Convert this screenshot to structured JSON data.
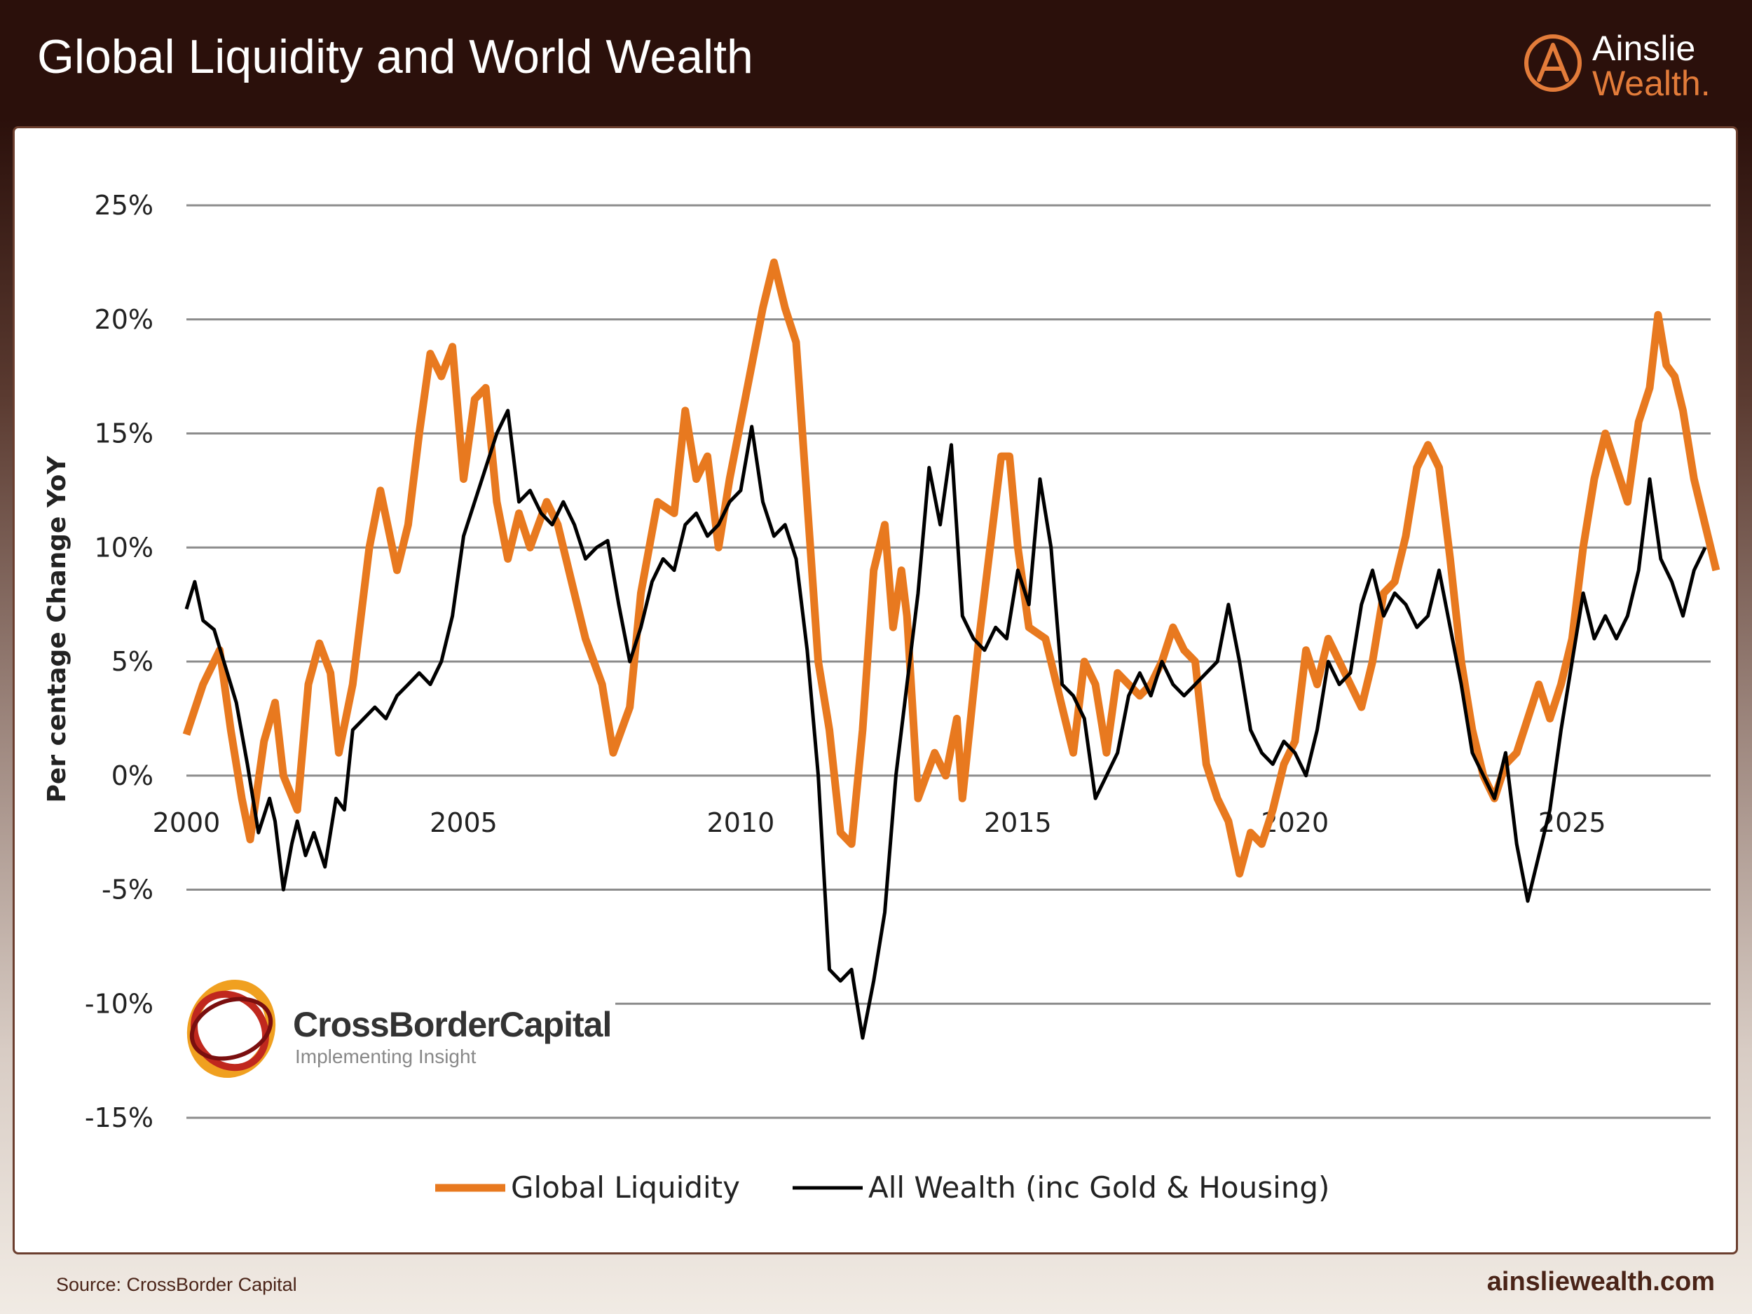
{
  "header": {
    "title": "Global Liquidity and World Wealth"
  },
  "brand": {
    "line1": "Ainslie",
    "line2": "Wealth.",
    "icon": "ainslie-a-logo-icon",
    "accent": "#e37c3a"
  },
  "watermark": {
    "name": "CrossBorderCapital",
    "tagline": "Implementing Insight",
    "icon": "crossborder-rings-logo-icon"
  },
  "footer": {
    "source": "Source: CrossBorder Capital",
    "url": "ainsliewealth.com"
  },
  "chart_data": {
    "type": "line",
    "title": "Global Liquidity and World Wealth",
    "ylabel": "Per centage Change YoY",
    "xlabel": "",
    "ylim": [
      -15,
      25
    ],
    "xlim": [
      2000,
      2027.5
    ],
    "yticks": [
      25,
      20,
      15,
      10,
      5,
      0,
      -5,
      -10,
      -15
    ],
    "ytick_labels": [
      "25%",
      "20%",
      "15%",
      "10%",
      "5%",
      "0%",
      "-5%",
      "-10%",
      "-15%"
    ],
    "xticks": [
      2000,
      2005,
      2010,
      2015,
      2020,
      2025
    ],
    "xtick_labels": [
      "2000",
      "2005",
      "2010",
      "2015",
      "2020",
      "2025"
    ],
    "grid": "horizontal",
    "legend_position": "bottom",
    "series": [
      {
        "name": "Global Liquidity",
        "color": "#e8791f",
        "points": [
          [
            2000.0,
            1.8
          ],
          [
            2000.3,
            4.0
          ],
          [
            2000.6,
            5.5
          ],
          [
            2000.8,
            2.0
          ],
          [
            2001.0,
            -1.0
          ],
          [
            2001.15,
            -2.8
          ],
          [
            2001.4,
            1.5
          ],
          [
            2001.6,
            3.2
          ],
          [
            2001.75,
            0.0
          ],
          [
            2002.0,
            -1.5
          ],
          [
            2002.2,
            4.0
          ],
          [
            2002.4,
            5.8
          ],
          [
            2002.6,
            4.5
          ],
          [
            2002.75,
            1.0
          ],
          [
            2003.0,
            4.0
          ],
          [
            2003.3,
            10.0
          ],
          [
            2003.5,
            12.5
          ],
          [
            2003.8,
            9.0
          ],
          [
            2004.0,
            11.0
          ],
          [
            2004.2,
            15.0
          ],
          [
            2004.4,
            18.5
          ],
          [
            2004.6,
            17.5
          ],
          [
            2004.8,
            18.8
          ],
          [
            2005.0,
            13.0
          ],
          [
            2005.2,
            16.5
          ],
          [
            2005.4,
            17.0
          ],
          [
            2005.6,
            12.0
          ],
          [
            2005.8,
            9.5
          ],
          [
            2006.0,
            11.5
          ],
          [
            2006.2,
            10.0
          ],
          [
            2006.5,
            12.0
          ],
          [
            2006.7,
            11.0
          ],
          [
            2007.0,
            8.0
          ],
          [
            2007.2,
            6.0
          ],
          [
            2007.5,
            4.0
          ],
          [
            2007.7,
            1.0
          ],
          [
            2008.0,
            3.0
          ],
          [
            2008.2,
            8.0
          ],
          [
            2008.5,
            12.0
          ],
          [
            2008.8,
            11.5
          ],
          [
            2009.0,
            16.0
          ],
          [
            2009.2,
            13.0
          ],
          [
            2009.4,
            14.0
          ],
          [
            2009.6,
            10.0
          ],
          [
            2009.8,
            13.0
          ],
          [
            2010.0,
            15.5
          ],
          [
            2010.2,
            18.0
          ],
          [
            2010.4,
            20.5
          ],
          [
            2010.6,
            22.5
          ],
          [
            2010.8,
            20.5
          ],
          [
            2011.0,
            19.0
          ],
          [
            2011.2,
            12.0
          ],
          [
            2011.4,
            5.0
          ],
          [
            2011.6,
            2.0
          ],
          [
            2011.8,
            -2.5
          ],
          [
            2012.0,
            -3.0
          ],
          [
            2012.2,
            2.0
          ],
          [
            2012.4,
            9.0
          ],
          [
            2012.6,
            11.0
          ],
          [
            2012.75,
            6.5
          ],
          [
            2012.9,
            9.0
          ],
          [
            2013.0,
            7.0
          ],
          [
            2013.2,
            -1.0
          ],
          [
            2013.5,
            1.0
          ],
          [
            2013.7,
            0.0
          ],
          [
            2013.9,
            2.5
          ],
          [
            2014.0,
            -1.0
          ],
          [
            2014.3,
            6.0
          ],
          [
            2014.5,
            10.0
          ],
          [
            2014.7,
            14.0
          ],
          [
            2014.85,
            14.0
          ],
          [
            2015.0,
            10.0
          ],
          [
            2015.2,
            6.5
          ],
          [
            2015.5,
            6.0
          ],
          [
            2015.8,
            3.0
          ],
          [
            2016.0,
            1.0
          ],
          [
            2016.2,
            5.0
          ],
          [
            2016.4,
            4.0
          ],
          [
            2016.6,
            1.0
          ],
          [
            2016.8,
            4.5
          ],
          [
            2017.0,
            4.0
          ],
          [
            2017.2,
            3.5
          ],
          [
            2017.4,
            4.0
          ],
          [
            2017.6,
            5.0
          ],
          [
            2017.8,
            6.5
          ],
          [
            2018.0,
            5.5
          ],
          [
            2018.2,
            5.0
          ],
          [
            2018.4,
            0.5
          ],
          [
            2018.6,
            -1.0
          ],
          [
            2018.8,
            -2.0
          ],
          [
            2019.0,
            -4.3
          ],
          [
            2019.2,
            -2.5
          ],
          [
            2019.4,
            -3.0
          ],
          [
            2019.6,
            -1.5
          ],
          [
            2019.8,
            0.5
          ],
          [
            2020.0,
            1.5
          ],
          [
            2020.2,
            5.5
          ],
          [
            2020.4,
            4.0
          ],
          [
            2020.6,
            6.0
          ],
          [
            2020.8,
            5.0
          ],
          [
            2021.0,
            4.0
          ],
          [
            2021.2,
            3.0
          ],
          [
            2021.4,
            5.0
          ],
          [
            2021.6,
            8.0
          ],
          [
            2021.8,
            8.5
          ],
          [
            2022.0,
            10.5
          ],
          [
            2022.2,
            13.5
          ],
          [
            2022.4,
            14.5
          ],
          [
            2022.6,
            13.5
          ],
          [
            2022.8,
            9.5
          ],
          [
            2023.0,
            5.0
          ],
          [
            2023.2,
            2.0
          ],
          [
            2023.4,
            0.0
          ],
          [
            2023.6,
            -1.0
          ],
          [
            2023.8,
            0.5
          ],
          [
            2024.0,
            1.0
          ],
          [
            2024.2,
            2.5
          ],
          [
            2024.4,
            4.0
          ],
          [
            2024.6,
            2.5
          ],
          [
            2024.8,
            4.0
          ],
          [
            2025.0,
            6.0
          ],
          [
            2025.2,
            10.0
          ],
          [
            2025.4,
            13.0
          ],
          [
            2025.6,
            15.0
          ],
          [
            2025.8,
            13.5
          ],
          [
            2026.0,
            12.0
          ],
          [
            2026.2,
            15.5
          ],
          [
            2026.4,
            17.0
          ],
          [
            2026.55,
            20.2
          ],
          [
            2026.7,
            18.0
          ],
          [
            2026.85,
            17.5
          ],
          [
            2027.0,
            16.0
          ],
          [
            2027.2,
            13.0
          ],
          [
            2027.4,
            11.0
          ],
          [
            2027.6,
            9.0
          ]
        ],
        "forecast_start_index": 999
      },
      {
        "name": "All Wealth (inc Gold & Housing)",
        "color": "#000000",
        "points": [
          [
            2000.0,
            7.3
          ],
          [
            2000.15,
            8.5
          ],
          [
            2000.3,
            6.8
          ],
          [
            2000.5,
            6.4
          ],
          [
            2000.7,
            4.8
          ],
          [
            2000.9,
            3.2
          ],
          [
            2001.1,
            0.5
          ],
          [
            2001.3,
            -2.5
          ],
          [
            2001.5,
            -1.0
          ],
          [
            2001.6,
            -2.0
          ],
          [
            2001.75,
            -5.0
          ],
          [
            2001.9,
            -3.0
          ],
          [
            2002.0,
            -2.0
          ],
          [
            2002.15,
            -3.5
          ],
          [
            2002.3,
            -2.5
          ],
          [
            2002.5,
            -4.0
          ],
          [
            2002.7,
            -1.0
          ],
          [
            2002.85,
            -1.5
          ],
          [
            2003.0,
            2.0
          ],
          [
            2003.2,
            2.5
          ],
          [
            2003.4,
            3.0
          ],
          [
            2003.6,
            2.5
          ],
          [
            2003.8,
            3.5
          ],
          [
            2004.0,
            4.0
          ],
          [
            2004.2,
            4.5
          ],
          [
            2004.4,
            4.0
          ],
          [
            2004.6,
            5.0
          ],
          [
            2004.8,
            7.0
          ],
          [
            2005.0,
            10.5
          ],
          [
            2005.2,
            12.0
          ],
          [
            2005.4,
            13.5
          ],
          [
            2005.6,
            15.0
          ],
          [
            2005.8,
            16.0
          ],
          [
            2006.0,
            12.0
          ],
          [
            2006.2,
            12.5
          ],
          [
            2006.4,
            11.5
          ],
          [
            2006.6,
            11.0
          ],
          [
            2006.8,
            12.0
          ],
          [
            2007.0,
            11.0
          ],
          [
            2007.2,
            9.5
          ],
          [
            2007.4,
            10.0
          ],
          [
            2007.6,
            10.3
          ],
          [
            2007.8,
            7.5
          ],
          [
            2008.0,
            5.0
          ],
          [
            2008.2,
            6.5
          ],
          [
            2008.4,
            8.5
          ],
          [
            2008.6,
            9.5
          ],
          [
            2008.8,
            9.0
          ],
          [
            2009.0,
            11.0
          ],
          [
            2009.2,
            11.5
          ],
          [
            2009.4,
            10.5
          ],
          [
            2009.6,
            11.0
          ],
          [
            2009.8,
            12.0
          ],
          [
            2010.0,
            12.5
          ],
          [
            2010.2,
            15.3
          ],
          [
            2010.4,
            12.0
          ],
          [
            2010.6,
            10.5
          ],
          [
            2010.8,
            11.0
          ],
          [
            2011.0,
            9.5
          ],
          [
            2011.2,
            5.5
          ],
          [
            2011.4,
            0.0
          ],
          [
            2011.6,
            -8.5
          ],
          [
            2011.8,
            -9.0
          ],
          [
            2012.0,
            -8.5
          ],
          [
            2012.2,
            -11.5
          ],
          [
            2012.4,
            -9.0
          ],
          [
            2012.6,
            -6.0
          ],
          [
            2012.8,
            0.0
          ],
          [
            2013.0,
            4.0
          ],
          [
            2013.2,
            8.0
          ],
          [
            2013.4,
            13.5
          ],
          [
            2013.6,
            11.0
          ],
          [
            2013.8,
            14.5
          ],
          [
            2014.0,
            7.0
          ],
          [
            2014.2,
            6.0
          ],
          [
            2014.4,
            5.5
          ],
          [
            2014.6,
            6.5
          ],
          [
            2014.8,
            6.0
          ],
          [
            2015.0,
            9.0
          ],
          [
            2015.2,
            7.5
          ],
          [
            2015.4,
            13.0
          ],
          [
            2015.6,
            10.0
          ],
          [
            2015.8,
            4.0
          ],
          [
            2016.0,
            3.5
          ],
          [
            2016.2,
            2.5
          ],
          [
            2016.4,
            -1.0
          ],
          [
            2016.6,
            0.0
          ],
          [
            2016.8,
            1.0
          ],
          [
            2017.0,
            3.5
          ],
          [
            2017.2,
            4.5
          ],
          [
            2017.4,
            3.5
          ],
          [
            2017.6,
            5.0
          ],
          [
            2017.8,
            4.0
          ],
          [
            2018.0,
            3.5
          ],
          [
            2018.2,
            4.0
          ],
          [
            2018.4,
            4.5
          ],
          [
            2018.6,
            5.0
          ],
          [
            2018.8,
            7.5
          ],
          [
            2019.0,
            5.0
          ],
          [
            2019.2,
            2.0
          ],
          [
            2019.4,
            1.0
          ],
          [
            2019.6,
            0.5
          ],
          [
            2019.8,
            1.5
          ],
          [
            2020.0,
            1.0
          ],
          [
            2020.2,
            0.0
          ],
          [
            2020.4,
            2.0
          ],
          [
            2020.6,
            5.0
          ],
          [
            2020.8,
            4.0
          ],
          [
            2021.0,
            4.5
          ],
          [
            2021.2,
            7.5
          ],
          [
            2021.4,
            9.0
          ],
          [
            2021.6,
            7.0
          ],
          [
            2021.8,
            8.0
          ],
          [
            2022.0,
            7.5
          ],
          [
            2022.2,
            6.5
          ],
          [
            2022.4,
            7.0
          ],
          [
            2022.6,
            9.0
          ],
          [
            2022.8,
            6.5
          ],
          [
            2023.0,
            4.0
          ],
          [
            2023.2,
            1.0
          ],
          [
            2023.4,
            0.0
          ],
          [
            2023.6,
            -1.0
          ],
          [
            2023.8,
            1.0
          ],
          [
            2024.0,
            -3.0
          ],
          [
            2024.2,
            -5.5
          ],
          [
            2024.4,
            -3.5
          ],
          [
            2024.6,
            -1.5
          ],
          [
            2024.8,
            2.0
          ],
          [
            2025.0,
            5.0
          ],
          [
            2025.2,
            8.0
          ],
          [
            2025.4,
            6.0
          ],
          [
            2025.6,
            7.0
          ],
          [
            2025.8,
            6.0
          ],
          [
            2026.0,
            7.0
          ],
          [
            2026.2,
            9.0
          ],
          [
            2026.4,
            13.0
          ],
          [
            2026.6,
            9.5
          ],
          [
            2026.8,
            8.5
          ],
          [
            2027.0,
            7.0
          ],
          [
            2027.2,
            9.0
          ],
          [
            2027.4,
            10.0
          ]
        ]
      }
    ],
    "legend": [
      {
        "label": "Global Liquidity",
        "color": "#e8791f"
      },
      {
        "label": "All Wealth (inc Gold & Housing)",
        "color": "#000000"
      }
    ]
  }
}
